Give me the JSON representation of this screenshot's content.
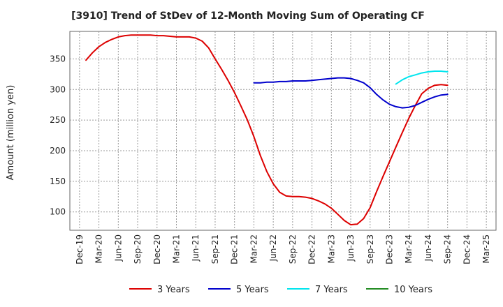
{
  "chart_data": {
    "type": "line",
    "title": "[3910]  Trend of StDev of 12-Month Moving Sum of Operating CF",
    "ylabel": "Amount (million yen)",
    "xlabel": "",
    "ylim": [
      70,
      395
    ],
    "yticks": [
      100,
      150,
      200,
      250,
      300,
      350
    ],
    "x_ticks": [
      "Dec-19",
      "Mar-20",
      "Jun-20",
      "Sep-20",
      "Dec-20",
      "Mar-21",
      "Jun-21",
      "Sep-21",
      "Dec-21",
      "Mar-22",
      "Jun-22",
      "Sep-22",
      "Dec-22",
      "Mar-23",
      "Jun-23",
      "Sep-23",
      "Dec-23",
      "Mar-24",
      "Jun-24",
      "Sep-24",
      "Dec-24",
      "Mar-25"
    ],
    "grid": true,
    "legend_position": "bottom",
    "series": [
      {
        "name": "3 Years",
        "color": "#dd0000",
        "x": [
          "Jan-20",
          "Feb-20",
          "Mar-20",
          "Apr-20",
          "May-20",
          "Jun-20",
          "Jul-20",
          "Aug-20",
          "Sep-20",
          "Oct-20",
          "Nov-20",
          "Dec-20",
          "Jan-21",
          "Feb-21",
          "Mar-21",
          "Apr-21",
          "May-21",
          "Jun-21",
          "Jul-21",
          "Aug-21",
          "Sep-21",
          "Oct-21",
          "Nov-21",
          "Dec-21",
          "Jan-22",
          "Feb-22",
          "Mar-22",
          "Apr-22",
          "May-22",
          "Jun-22",
          "Jul-22",
          "Aug-22",
          "Sep-22",
          "Oct-22",
          "Nov-22",
          "Dec-22",
          "Jan-23",
          "Feb-23",
          "Mar-23",
          "Apr-23",
          "May-23",
          "Jun-23",
          "Jul-23",
          "Aug-23",
          "Sep-23",
          "Oct-23",
          "Nov-23",
          "Dec-23",
          "Jan-24",
          "Feb-24",
          "Mar-24",
          "Apr-24",
          "May-24",
          "Jun-24",
          "Jul-24",
          "Aug-24",
          "Sep-24"
        ],
        "values": [
          348,
          360,
          370,
          377,
          382,
          386,
          388,
          389,
          389,
          389,
          389,
          388,
          388,
          387,
          386,
          386,
          386,
          384,
          379,
          368,
          350,
          333,
          315,
          295,
          273,
          250,
          223,
          192,
          166,
          146,
          132,
          126,
          125,
          125,
          124,
          122,
          118,
          113,
          106,
          96,
          86,
          79,
          80,
          89,
          107,
          133,
          158,
          182,
          206,
          230,
          253,
          274,
          293,
          302,
          307,
          308,
          307
        ]
      },
      {
        "name": "5 Years",
        "color": "#0000cc",
        "x": [
          "Mar-22",
          "Apr-22",
          "May-22",
          "Jun-22",
          "Jul-22",
          "Aug-22",
          "Sep-22",
          "Oct-22",
          "Nov-22",
          "Dec-22",
          "Jan-23",
          "Feb-23",
          "Mar-23",
          "Apr-23",
          "May-23",
          "Jun-23",
          "Jul-23",
          "Aug-23",
          "Sep-23",
          "Oct-23",
          "Nov-23",
          "Dec-23",
          "Jan-24",
          "Feb-24",
          "Mar-24",
          "Apr-24",
          "May-24",
          "Jun-24",
          "Jul-24",
          "Aug-24",
          "Sep-24"
        ],
        "values": [
          311,
          311,
          312,
          312,
          313,
          313,
          314,
          314,
          314,
          315,
          316,
          317,
          318,
          319,
          319,
          318,
          315,
          311,
          303,
          292,
          283,
          276,
          272,
          270,
          271,
          274,
          279,
          284,
          288,
          291,
          292
        ]
      },
      {
        "name": "7 Years",
        "color": "#00e5ee",
        "x": [
          "Jan-24",
          "Feb-24",
          "Mar-24",
          "Apr-24",
          "May-24",
          "Jun-24",
          "Jul-24",
          "Aug-24",
          "Sep-24"
        ],
        "values": [
          309,
          316,
          321,
          324,
          327,
          329,
          330,
          330,
          329
        ]
      },
      {
        "name": "10 Years",
        "color": "#228b22",
        "x": [],
        "values": []
      }
    ]
  }
}
